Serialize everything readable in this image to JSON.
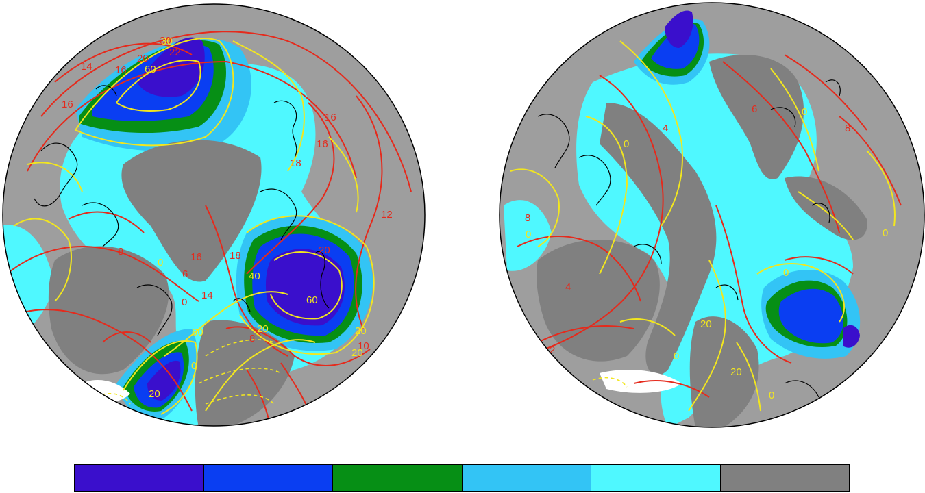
{
  "colors": {
    "land": "#9e9e9e",
    "ocean_level6": "#808080",
    "red_contour": "#e52a1c",
    "yellow_contour": "#f2e61f",
    "coast": "#000000",
    "sea_ice_white": "#ffffff"
  },
  "colorbar": {
    "swatches": [
      "#3a0fcc",
      "#0a3ef2",
      "#068f15",
      "#33c4f5",
      "#4ff8ff",
      "#808080"
    ]
  },
  "panels": [
    {
      "id": "left",
      "red_labels": [
        "22",
        "20",
        "16",
        "14",
        "16",
        "16",
        "16",
        "18",
        "18",
        "12",
        "16",
        "14",
        "8",
        "6",
        "0",
        "8",
        "10",
        "20",
        "30"
      ],
      "yellow_labels": [
        "30",
        "60",
        "0",
        "40",
        "60",
        "20",
        "20",
        "20",
        "0",
        "20",
        "60"
      ]
    },
    {
      "id": "right",
      "red_labels": [
        "4",
        "6",
        "8",
        "4",
        "2",
        "8"
      ],
      "yellow_labels": [
        "0",
        "0",
        "20",
        "20",
        "0",
        "0",
        "0",
        "0",
        "0"
      ]
    }
  ]
}
